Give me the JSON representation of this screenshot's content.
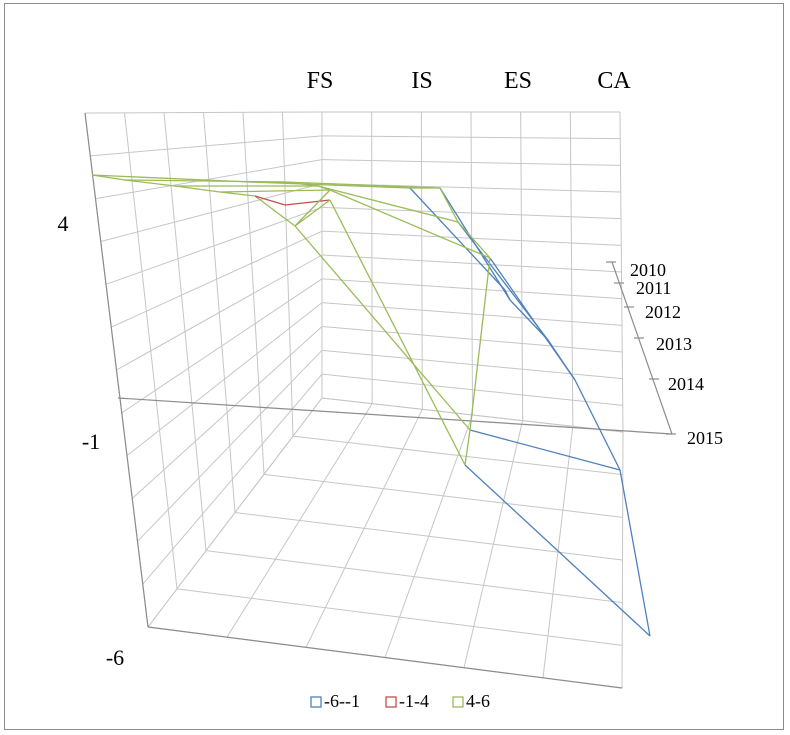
{
  "chart_data": {
    "type": "surface-wireframe",
    "categories": [
      "FS",
      "IS",
      "ES",
      "CA"
    ],
    "years": [
      "2010",
      "2011",
      "2012",
      "2013",
      "2014",
      "2015"
    ],
    "zticks": [
      "4",
      "-1",
      "-6"
    ],
    "zlim": [
      -6,
      6
    ],
    "grid": true,
    "legend_position": "bottom",
    "bands": [
      {
        "label": "-6--1",
        "color": "#4f81bd"
      },
      {
        "label": "-1-4",
        "color": "#c0504d"
      },
      {
        "label": "4-6",
        "color": "#9bbb59"
      }
    ],
    "values": [
      [
        5.6,
        5.4,
        5.1,
        5.0,
        4.4,
        3.4
      ],
      [
        5.6,
        5.5,
        5.4,
        5.3,
        5.2,
        5.0
      ],
      [
        5.6,
        5.5,
        5.4,
        5.3,
        5.2,
        5.1
      ],
      [
        -1.5,
        -2.0,
        -2.5,
        -3.0,
        -3.5,
        -5.0
      ]
    ]
  }
}
